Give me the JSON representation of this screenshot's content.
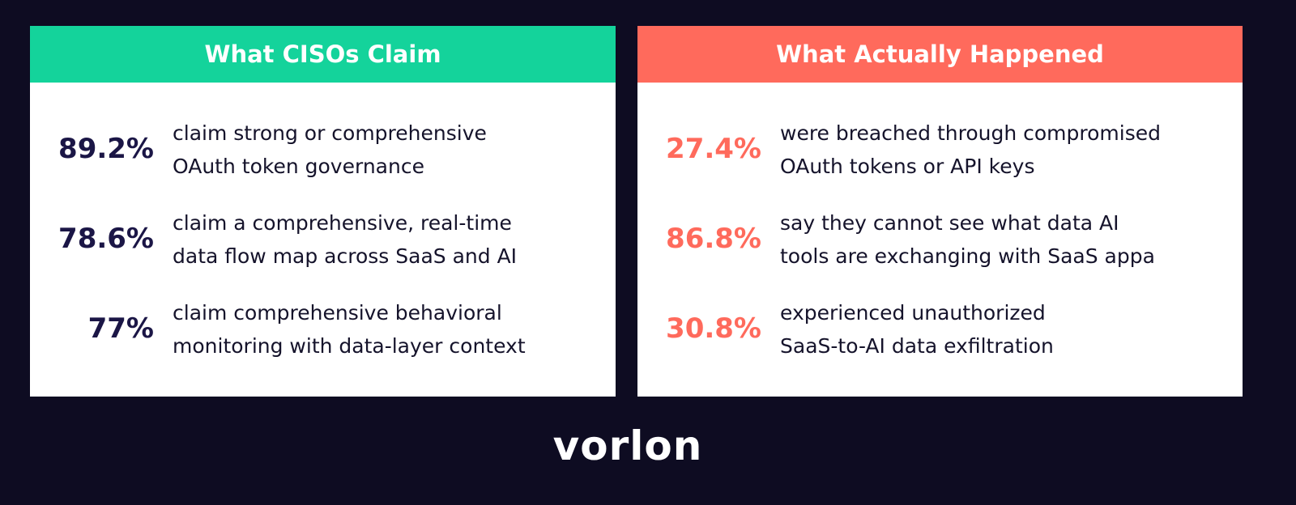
{
  "panels": [
    {
      "title": "What CISOs Claim",
      "items": [
        {
          "stat": "89.2%",
          "lines": [
            "claim strong or comprehensive",
            "OAuth token governance"
          ]
        },
        {
          "stat": "78.6%",
          "lines": [
            "claim a comprehensive, real-time",
            "data flow map across SaaS and AI"
          ]
        },
        {
          "stat": "77%",
          "lines": [
            "claim comprehensive behavioral",
            "monitoring with data-layer context"
          ]
        }
      ]
    },
    {
      "title": "What Actually Happened",
      "items": [
        {
          "stat": "27.4%",
          "lines": [
            "were breached through compromised",
            "OAuth tokens or API keys"
          ]
        },
        {
          "stat": "86.8%",
          "lines": [
            "say they cannot see what data AI",
            "tools are exchanging with SaaS appa"
          ]
        },
        {
          "stat": "30.8%",
          "lines": [
            "experienced unauthorized",
            "SaaS-to-AI data exfiltration"
          ]
        }
      ]
    }
  ],
  "logo": "vorlon"
}
